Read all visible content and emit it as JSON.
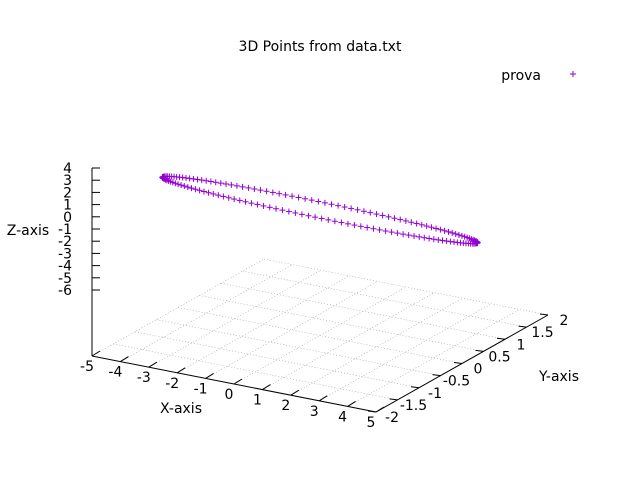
{
  "chart_data": {
    "type": "scatter",
    "title": "3D Points from data.txt",
    "xlabel": "X-axis",
    "ylabel": "Y-axis",
    "zlabel": "Z-axis",
    "xticks": [
      "-5",
      "-4",
      "-3",
      "-2",
      "-1",
      "0",
      "1",
      "2",
      "3",
      "4",
      "5"
    ],
    "yticks": [
      "-2",
      "-1.5",
      "-1",
      "-0.5",
      "0",
      "0.5",
      "1",
      "1.5",
      "2"
    ],
    "zticks": [
      "4",
      "3",
      "2",
      "1",
      "0",
      "-1",
      "-2",
      "-3",
      "-4",
      "-5",
      "-6"
    ],
    "grid": true,
    "legend_position": "top-right",
    "series": [
      {
        "name": "prova",
        "color": "#9400d3",
        "marker": "plus",
        "shape": "ellipse",
        "center": [
          0,
          0,
          0.6
        ],
        "x_semi_axis": 5.2,
        "y_semi_axis": 0.35,
        "z_amplitude": 2.5,
        "points": 150
      }
    ]
  }
}
